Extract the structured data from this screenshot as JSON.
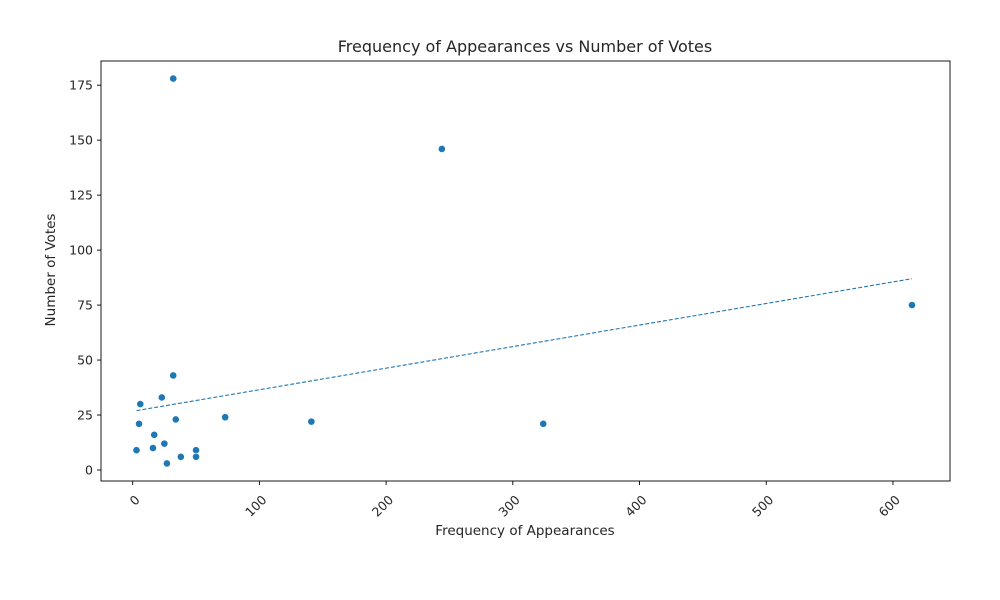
{
  "chart_data": {
    "type": "scatter",
    "title": "Frequency of Appearances vs Number of Votes",
    "xlabel": "Frequency of Appearances",
    "ylabel": "Number of Votes",
    "xlim": [
      -25,
      645
    ],
    "ylim": [
      -5,
      186
    ],
    "xticks": [
      0,
      100,
      200,
      300,
      400,
      500,
      600
    ],
    "yticks": [
      0,
      25,
      50,
      75,
      100,
      125,
      150,
      175
    ],
    "xtick_rotation": 45,
    "grid": false,
    "legend": "none",
    "point_color": "#1f77b4",
    "trendline_color": "#1f77b4",
    "points": [
      {
        "x": 3,
        "y": 9
      },
      {
        "x": 5,
        "y": 21
      },
      {
        "x": 6,
        "y": 30
      },
      {
        "x": 16,
        "y": 10
      },
      {
        "x": 17,
        "y": 16
      },
      {
        "x": 23,
        "y": 33
      },
      {
        "x": 25,
        "y": 12
      },
      {
        "x": 27,
        "y": 3
      },
      {
        "x": 32,
        "y": 43
      },
      {
        "x": 32,
        "y": 178
      },
      {
        "x": 34,
        "y": 23
      },
      {
        "x": 38,
        "y": 6
      },
      {
        "x": 50,
        "y": 9
      },
      {
        "x": 50,
        "y": 6
      },
      {
        "x": 73,
        "y": 24
      },
      {
        "x": 141,
        "y": 22
      },
      {
        "x": 244,
        "y": 146
      },
      {
        "x": 324,
        "y": 21
      },
      {
        "x": 615,
        "y": 75
      }
    ],
    "trendline": {
      "style": "dashed",
      "from": {
        "x": 3,
        "y": 27
      },
      "to": {
        "x": 615,
        "y": 87
      }
    }
  }
}
